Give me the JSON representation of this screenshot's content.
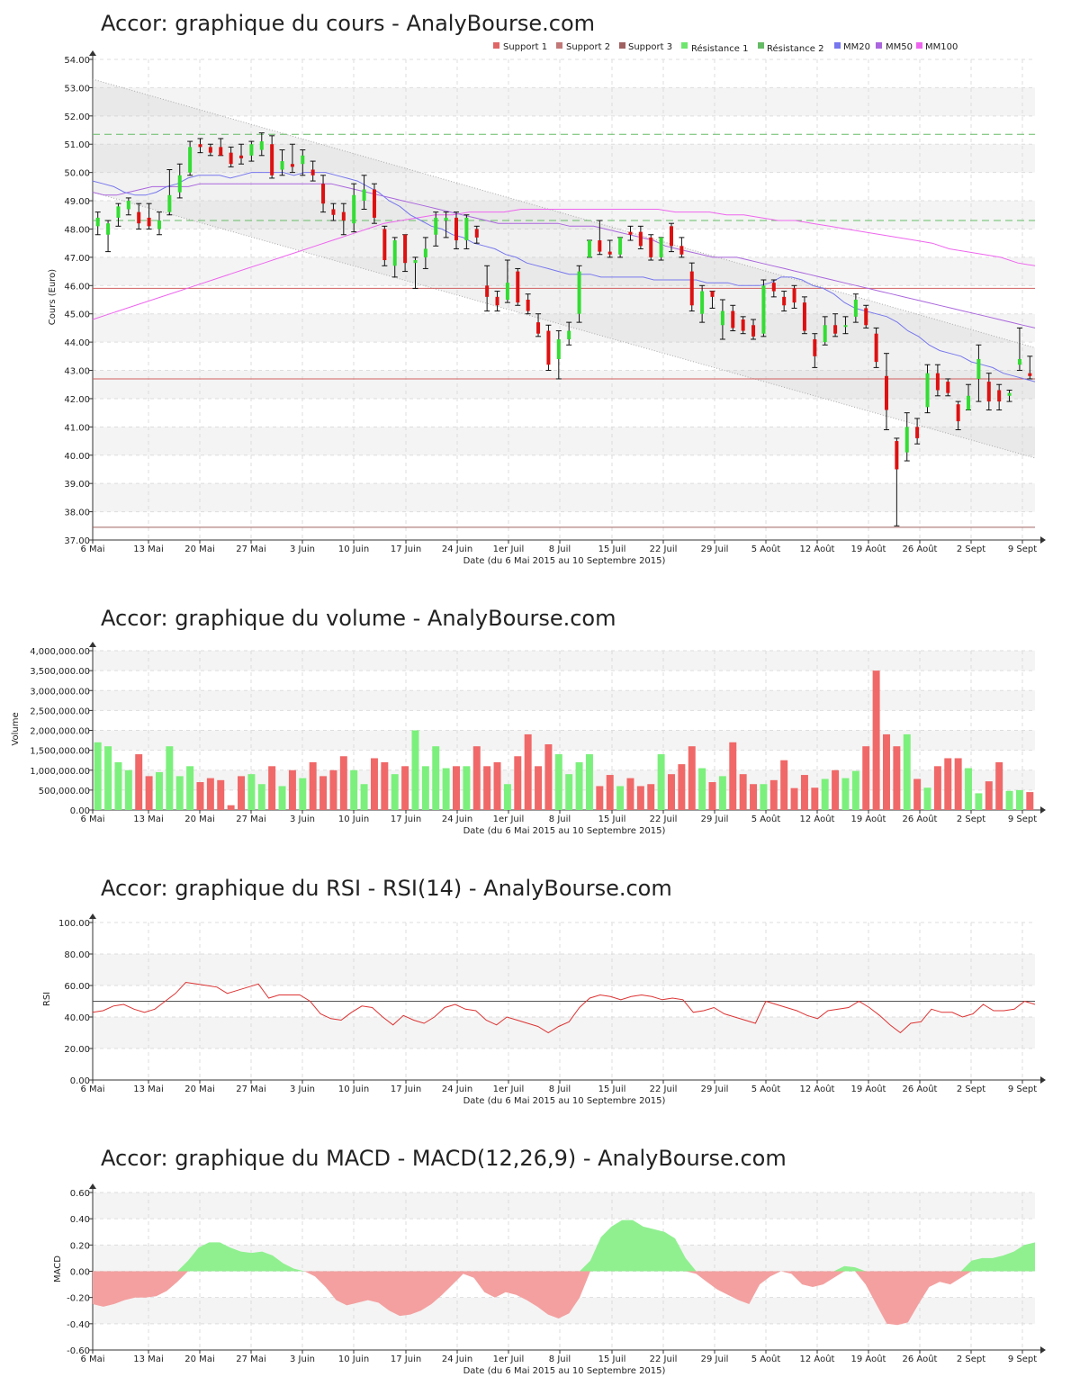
{
  "chart_data": [
    {
      "id": "price",
      "type": "candlestick",
      "title": "Accor: graphique du cours - AnalyBourse.com",
      "ylabel": "Cours (Euro)",
      "xlabel": "Date (du 6 Mai 2015 au 10 Septembre 2015)",
      "ylim": [
        37,
        54
      ],
      "yticks": [
        "37.00",
        "38.00",
        "39.00",
        "40.00",
        "41.00",
        "42.00",
        "43.00",
        "44.00",
        "45.00",
        "46.00",
        "47.00",
        "48.00",
        "49.00",
        "50.00",
        "51.00",
        "52.00",
        "53.00",
        "54.00"
      ],
      "xticks": [
        "6 Mai",
        "13 Mai",
        "20 Mai",
        "27 Mai",
        "3 Juin",
        "10 Juin",
        "17 Juin",
        "24 Juin",
        "1er Juil",
        "8 Juil",
        "15 Juil",
        "22 Juil",
        "29 Juil",
        "5 Août",
        "12 Août",
        "19 Août",
        "26 Août",
        "2 Sept",
        "9 Sept"
      ],
      "legend": {
        "position": "top-right",
        "items": [
          {
            "name": "Support 1",
            "color": "#e06666"
          },
          {
            "name": "Support 2",
            "color": "#c27878"
          },
          {
            "name": "Support 3",
            "color": "#a06060"
          },
          {
            "name": "Résistance 1",
            "color": "#6ee66e"
          },
          {
            "name": "Résistance 2",
            "color": "#66bb66"
          },
          {
            "name": "MM20",
            "color": "#7777ee"
          },
          {
            "name": "MM50",
            "color": "#aa66dd"
          },
          {
            "name": "MM100",
            "color": "#ee66ee"
          }
        ]
      },
      "levels": {
        "support_1": 42.7,
        "support_2": 45.9,
        "support_3": 37.45,
        "resistance_1": 48.3,
        "resistance_2": 51.35
      },
      "channel": {
        "upper": [
          53.3,
          43.8
        ],
        "lower": [
          49.3,
          39.9
        ]
      },
      "candles": [
        {
          "o": 48.1,
          "h": 48.6,
          "l": 47.8,
          "c": 48.4
        },
        {
          "o": 47.8,
          "h": 48.3,
          "l": 47.2,
          "c": 48.2
        },
        {
          "o": 48.4,
          "h": 48.9,
          "l": 48.1,
          "c": 48.8
        },
        {
          "o": 48.7,
          "h": 49.1,
          "l": 48.5,
          "c": 49.0
        },
        {
          "o": 48.6,
          "h": 48.9,
          "l": 48.0,
          "c": 48.2
        },
        {
          "o": 48.4,
          "h": 48.9,
          "l": 48.0,
          "c": 48.1
        },
        {
          "o": 48.0,
          "h": 48.6,
          "l": 47.8,
          "c": 48.3
        },
        {
          "o": 48.6,
          "h": 50.1,
          "l": 48.5,
          "c": 49.2
        },
        {
          "o": 49.3,
          "h": 50.3,
          "l": 49.1,
          "c": 49.9
        },
        {
          "o": 50.0,
          "h": 51.1,
          "l": 49.9,
          "c": 50.9
        },
        {
          "o": 51.0,
          "h": 51.2,
          "l": 50.7,
          "c": 50.9
        },
        {
          "o": 50.9,
          "h": 51.0,
          "l": 50.6,
          "c": 50.7
        },
        {
          "o": 50.9,
          "h": 51.2,
          "l": 50.6,
          "c": 50.6
        },
        {
          "o": 50.7,
          "h": 50.9,
          "l": 50.2,
          "c": 50.3
        },
        {
          "o": 50.6,
          "h": 51.0,
          "l": 50.3,
          "c": 50.5
        },
        {
          "o": 50.6,
          "h": 51.1,
          "l": 50.4,
          "c": 51.0
        },
        {
          "o": 50.8,
          "h": 51.4,
          "l": 50.6,
          "c": 51.1
        },
        {
          "o": 51.0,
          "h": 51.3,
          "l": 49.8,
          "c": 49.9
        },
        {
          "o": 50.1,
          "h": 50.8,
          "l": 49.9,
          "c": 50.4
        },
        {
          "o": 50.3,
          "h": 51.0,
          "l": 50.0,
          "c": 50.2
        },
        {
          "o": 50.3,
          "h": 50.8,
          "l": 49.9,
          "c": 50.6
        },
        {
          "o": 50.1,
          "h": 50.4,
          "l": 49.7,
          "c": 49.9
        },
        {
          "o": 49.6,
          "h": 49.9,
          "l": 48.6,
          "c": 48.9
        },
        {
          "o": 48.7,
          "h": 48.9,
          "l": 48.3,
          "c": 48.5
        },
        {
          "o": 48.6,
          "h": 48.9,
          "l": 47.8,
          "c": 48.3
        },
        {
          "o": 48.2,
          "h": 49.6,
          "l": 47.9,
          "c": 49.2
        },
        {
          "o": 49.0,
          "h": 49.9,
          "l": 48.7,
          "c": 49.4
        },
        {
          "o": 49.4,
          "h": 49.6,
          "l": 48.2,
          "c": 48.4
        },
        {
          "o": 48.0,
          "h": 48.1,
          "l": 46.7,
          "c": 46.9
        },
        {
          "o": 46.7,
          "h": 47.7,
          "l": 46.3,
          "c": 47.6
        },
        {
          "o": 47.8,
          "h": 47.8,
          "l": 46.5,
          "c": 46.8
        },
        {
          "o": 46.8,
          "h": 47.0,
          "l": 45.9,
          "c": 46.9
        },
        {
          "o": 47.0,
          "h": 47.7,
          "l": 46.6,
          "c": 47.3
        },
        {
          "o": 47.8,
          "h": 48.6,
          "l": 47.4,
          "c": 48.4
        },
        {
          "o": 48.3,
          "h": 48.6,
          "l": 47.7,
          "c": 48.4
        },
        {
          "o": 48.4,
          "h": 48.6,
          "l": 47.3,
          "c": 47.6
        },
        {
          "o": 47.6,
          "h": 48.5,
          "l": 47.3,
          "c": 48.4
        },
        {
          "o": 48.0,
          "h": 48.1,
          "l": 47.5,
          "c": 47.7
        },
        {
          "o": 46.0,
          "h": 46.7,
          "l": 45.1,
          "c": 45.6
        },
        {
          "o": 45.6,
          "h": 45.8,
          "l": 45.1,
          "c": 45.3
        },
        {
          "o": 45.5,
          "h": 46.9,
          "l": 45.4,
          "c": 46.1
        },
        {
          "o": 46.5,
          "h": 46.6,
          "l": 45.3,
          "c": 45.4
        },
        {
          "o": 45.5,
          "h": 45.7,
          "l": 45.0,
          "c": 45.1
        },
        {
          "o": 44.7,
          "h": 45.0,
          "l": 44.2,
          "c": 44.3
        },
        {
          "o": 44.4,
          "h": 44.6,
          "l": 43.0,
          "c": 43.2
        },
        {
          "o": 43.4,
          "h": 44.4,
          "l": 42.7,
          "c": 44.1
        },
        {
          "o": 44.1,
          "h": 44.7,
          "l": 43.9,
          "c": 44.4
        },
        {
          "o": 45.0,
          "h": 46.7,
          "l": 44.7,
          "c": 46.5
        },
        {
          "o": 47.0,
          "h": 47.6,
          "l": 47.0,
          "c": 47.6
        },
        {
          "o": 47.6,
          "h": 48.3,
          "l": 47.1,
          "c": 47.2
        },
        {
          "o": 47.2,
          "h": 47.6,
          "l": 47.0,
          "c": 47.1
        },
        {
          "o": 47.1,
          "h": 47.7,
          "l": 47.0,
          "c": 47.7
        },
        {
          "o": 47.9,
          "h": 48.1,
          "l": 47.6,
          "c": 47.8
        },
        {
          "o": 47.9,
          "h": 48.1,
          "l": 47.3,
          "c": 47.4
        },
        {
          "o": 47.7,
          "h": 47.8,
          "l": 46.9,
          "c": 47.0
        },
        {
          "o": 47.0,
          "h": 47.7,
          "l": 46.9,
          "c": 47.7
        },
        {
          "o": 48.1,
          "h": 48.2,
          "l": 47.2,
          "c": 47.4
        },
        {
          "o": 47.4,
          "h": 47.7,
          "l": 47.0,
          "c": 47.1
        },
        {
          "o": 46.5,
          "h": 46.8,
          "l": 45.1,
          "c": 45.3
        },
        {
          "o": 45.0,
          "h": 46.0,
          "l": 44.7,
          "c": 45.8
        },
        {
          "o": 45.8,
          "h": 45.8,
          "l": 45.2,
          "c": 45.6
        },
        {
          "o": 44.6,
          "h": 45.5,
          "l": 44.1,
          "c": 45.1
        },
        {
          "o": 45.1,
          "h": 45.3,
          "l": 44.4,
          "c": 44.5
        },
        {
          "o": 44.8,
          "h": 44.9,
          "l": 44.3,
          "c": 44.4
        },
        {
          "o": 44.6,
          "h": 44.8,
          "l": 44.1,
          "c": 44.2
        },
        {
          "o": 44.3,
          "h": 46.2,
          "l": 44.2,
          "c": 46.0
        },
        {
          "o": 46.1,
          "h": 46.2,
          "l": 45.6,
          "c": 45.8
        },
        {
          "o": 45.6,
          "h": 45.8,
          "l": 45.1,
          "c": 45.3
        },
        {
          "o": 45.9,
          "h": 46.0,
          "l": 45.2,
          "c": 45.4
        },
        {
          "o": 45.4,
          "h": 45.6,
          "l": 44.3,
          "c": 44.4
        },
        {
          "o": 44.1,
          "h": 44.3,
          "l": 43.1,
          "c": 43.5
        },
        {
          "o": 44.0,
          "h": 44.9,
          "l": 43.9,
          "c": 44.6
        },
        {
          "o": 44.6,
          "h": 45.0,
          "l": 44.2,
          "c": 44.3
        },
        {
          "o": 44.6,
          "h": 44.9,
          "l": 44.3,
          "c": 44.6
        },
        {
          "o": 44.9,
          "h": 45.7,
          "l": 44.7,
          "c": 45.5
        },
        {
          "o": 45.2,
          "h": 45.3,
          "l": 44.5,
          "c": 44.6
        },
        {
          "o": 44.3,
          "h": 44.5,
          "l": 43.1,
          "c": 43.3
        },
        {
          "o": 42.8,
          "h": 43.6,
          "l": 40.9,
          "c": 41.6
        },
        {
          "o": 40.5,
          "h": 40.6,
          "l": 37.5,
          "c": 39.5
        },
        {
          "o": 40.1,
          "h": 41.5,
          "l": 39.8,
          "c": 41.0
        },
        {
          "o": 41.0,
          "h": 41.3,
          "l": 40.4,
          "c": 40.6
        },
        {
          "o": 41.7,
          "h": 43.2,
          "l": 41.5,
          "c": 42.9
        },
        {
          "o": 42.9,
          "h": 43.2,
          "l": 42.1,
          "c": 42.3
        },
        {
          "o": 42.6,
          "h": 42.7,
          "l": 42.1,
          "c": 42.2
        },
        {
          "o": 41.8,
          "h": 41.9,
          "l": 40.9,
          "c": 41.2
        },
        {
          "o": 41.6,
          "h": 42.5,
          "l": 41.6,
          "c": 42.1
        },
        {
          "o": 42.7,
          "h": 43.9,
          "l": 41.9,
          "c": 43.4
        },
        {
          "o": 42.6,
          "h": 42.9,
          "l": 41.6,
          "c": 41.9
        },
        {
          "o": 42.3,
          "h": 42.5,
          "l": 41.6,
          "c": 41.9
        },
        {
          "o": 42.1,
          "h": 42.3,
          "l": 41.9,
          "c": 42.2
        },
        {
          "o": 43.2,
          "h": 44.5,
          "l": 43.0,
          "c": 43.4
        },
        {
          "o": 42.9,
          "h": 43.5,
          "l": 42.7,
          "c": 42.8
        }
      ],
      "mm20": [
        49.7,
        49.6,
        49.5,
        49.3,
        49.2,
        49.2,
        49.3,
        49.5,
        49.6,
        49.8,
        49.9,
        49.9,
        49.9,
        49.8,
        49.9,
        50.0,
        50.0,
        50.0,
        50.0,
        49.9,
        50.0,
        50.0,
        50.0,
        49.9,
        49.8,
        49.7,
        49.5,
        49.3,
        49.0,
        48.8,
        48.5,
        48.3,
        48.1,
        48.0,
        47.8,
        47.7,
        47.5,
        47.4,
        47.3,
        47.1,
        47.0,
        46.8,
        46.7,
        46.6,
        46.5,
        46.4,
        46.4,
        46.4,
        46.3,
        46.3,
        46.3,
        46.3,
        46.3,
        46.2,
        46.2,
        46.2,
        46.2,
        46.2,
        46.1,
        46.1,
        46.1,
        46.0,
        46.0,
        46.0,
        46.1,
        46.3,
        46.3,
        46.2,
        46.0,
        45.9,
        45.7,
        45.4,
        45.2,
        45.1,
        45.0,
        44.9,
        44.7,
        44.4,
        44.2,
        43.9,
        43.7,
        43.6,
        43.5,
        43.3,
        43.2,
        43.1,
        42.9,
        42.8,
        42.7,
        42.6
      ],
      "mm50": [
        49.3,
        49.2,
        49.2,
        49.3,
        49.4,
        49.5,
        49.5,
        49.5,
        49.5,
        49.6,
        49.6,
        49.6,
        49.6,
        49.6,
        49.6,
        49.6,
        49.6,
        49.6,
        49.6,
        49.6,
        49.6,
        49.5,
        49.4,
        49.3,
        49.2,
        49.1,
        49.0,
        48.9,
        48.8,
        48.7,
        48.6,
        48.5,
        48.4,
        48.3,
        48.2,
        48.2,
        48.2,
        48.2,
        48.2,
        48.2,
        48.1,
        48.1,
        48.1,
        48.0,
        47.9,
        47.8,
        47.7,
        47.6,
        47.4,
        47.3,
        47.2,
        47.1,
        47.0,
        47.0,
        47.0,
        46.9,
        46.8,
        46.7,
        46.6,
        46.5,
        46.4,
        46.3,
        46.2,
        46.1,
        46.0,
        45.9,
        45.8,
        45.7,
        45.6,
        45.5,
        45.4,
        45.3,
        45.2,
        45.1,
        45.0,
        44.9,
        44.8,
        44.7,
        44.6,
        44.5
      ],
      "mm100": [
        44.8,
        45.0,
        45.2,
        45.4,
        45.6,
        45.8,
        46.0,
        46.2,
        46.4,
        46.6,
        46.8,
        47.0,
        47.2,
        47.4,
        47.6,
        47.8,
        48.0,
        48.2,
        48.3,
        48.4,
        48.5,
        48.5,
        48.6,
        48.6,
        48.6,
        48.7,
        48.7,
        48.7,
        48.7,
        48.7,
        48.7,
        48.7,
        48.7,
        48.7,
        48.6,
        48.6,
        48.6,
        48.5,
        48.5,
        48.4,
        48.3,
        48.3,
        48.2,
        48.1,
        48.0,
        47.9,
        47.8,
        47.7,
        47.6,
        47.5,
        47.3,
        47.2,
        47.1,
        47.0,
        46.8,
        46.7
      ]
    },
    {
      "id": "volume",
      "type": "bar",
      "title": "Accor: graphique du volume - AnalyBourse.com",
      "ylabel": "Volume",
      "xlabel": "Date (du 6 Mai 2015 au 10 Septembre 2015)",
      "ylim": [
        0,
        4000000
      ],
      "yticks": [
        "0.00",
        "500,000.00",
        "1,000,000.00",
        "1,500,000.00",
        "2,000,000.00",
        "2,500,000.00",
        "3,000,000.00",
        "3,500,000.00",
        "4,000,000.00"
      ],
      "xticks": [
        "6 Mai",
        "13 Mai",
        "20 Mai",
        "27 Mai",
        "3 Juin",
        "10 Juin",
        "17 Juin",
        "24 Juin",
        "1er Juil",
        "8 Juil",
        "15 Juil",
        "22 Juil",
        "29 Juil",
        "5 Août",
        "12 Août",
        "19 Août",
        "26 Août",
        "2 Sept",
        "9 Sept"
      ],
      "up_color": "#7cf07c",
      "down_color": "#f06868"
    },
    {
      "id": "rsi",
      "type": "line",
      "title": "Accor: graphique du RSI - RSI(14) - AnalyBourse.com",
      "ylabel": "RSI",
      "xlabel": "Date (du 6 Mai 2015 au 10 Septembre 2015)",
      "ylim": [
        0,
        100
      ],
      "yticks": [
        "0.00",
        "20.00",
        "40.00",
        "60.00",
        "80.00",
        "100.00"
      ],
      "xticks": [
        "6 Mai",
        "13 Mai",
        "20 Mai",
        "27 Mai",
        "3 Juin",
        "10 Juin",
        "17 Juin",
        "24 Juin",
        "1er Juil",
        "8 Juil",
        "15 Juil",
        "22 Juil",
        "29 Juil",
        "5 Août",
        "12 Août",
        "19 Août",
        "26 Août",
        "2 Sept",
        "9 Sept"
      ],
      "reference": 50,
      "values": [
        43,
        44,
        47,
        48,
        45,
        43,
        45,
        50,
        55,
        62,
        61,
        60,
        59,
        55,
        57,
        59,
        61,
        52,
        54,
        54,
        54,
        50,
        42,
        39,
        38,
        43,
        47,
        46,
        40,
        35,
        41,
        38,
        36,
        40,
        46,
        48,
        45,
        44,
        38,
        35,
        40,
        38,
        36,
        34,
        30,
        34,
        37,
        46,
        52,
        54,
        53,
        51,
        53,
        54,
        53,
        51,
        52,
        51,
        43,
        44,
        46,
        42,
        40,
        38,
        36,
        50,
        48,
        46,
        44,
        41,
        39,
        44,
        45,
        46,
        50,
        46,
        41,
        35,
        30,
        36,
        37,
        45,
        43,
        43,
        40,
        42,
        48,
        44,
        44,
        45,
        50,
        48
      ]
    },
    {
      "id": "macd",
      "type": "area",
      "title": "Accor: graphique du MACD - MACD(12,26,9) - AnalyBourse.com",
      "ylabel": "MACD",
      "xlabel": "Date (du 6 Mai 2015 au 10 Septembre 2015)",
      "ylim": [
        -0.6,
        0.6
      ],
      "yticks": [
        "-0.60",
        "-0.40",
        "-0.20",
        "0.00",
        "0.20",
        "0.40",
        "0.60"
      ],
      "xticks": [
        "6 Mai",
        "13 Mai",
        "20 Mai",
        "27 Mai",
        "3 Juin",
        "10 Juin",
        "17 Juin",
        "24 Juin",
        "1er Juil",
        "8 Juil",
        "15 Juil",
        "22 Juil",
        "29 Juil",
        "5 Août",
        "12 Août",
        "19 Août",
        "26 Août",
        "2 Sept",
        "9 Sept"
      ],
      "positive_color": "#90f090",
      "negative_color": "#f4a0a0",
      "values": [
        -0.25,
        -0.27,
        -0.25,
        -0.22,
        -0.2,
        -0.2,
        -0.19,
        -0.15,
        -0.08,
        0.08,
        0.18,
        0.22,
        0.22,
        0.18,
        0.15,
        0.14,
        0.15,
        0.12,
        0.06,
        0.02,
        0.0,
        -0.04,
        -0.12,
        -0.22,
        -0.26,
        -0.24,
        -0.22,
        -0.24,
        -0.3,
        -0.34,
        -0.33,
        -0.3,
        -0.25,
        -0.18,
        -0.1,
        -0.02,
        -0.05,
        -0.16,
        -0.2,
        -0.16,
        -0.18,
        -0.22,
        -0.27,
        -0.33,
        -0.36,
        -0.32,
        -0.2,
        0.08,
        0.26,
        0.34,
        0.39,
        0.39,
        0.34,
        0.32,
        0.3,
        0.25,
        0.1,
        -0.02,
        -0.08,
        -0.14,
        -0.18,
        -0.22,
        -0.25,
        -0.1,
        -0.04,
        0.0,
        -0.02,
        -0.1,
        -0.12,
        -0.1,
        -0.05,
        0.04,
        0.03,
        -0.1,
        -0.25,
        -0.4,
        -0.41,
        -0.39,
        -0.25,
        -0.12,
        -0.08,
        -0.1,
        -0.05,
        0.08,
        0.1,
        0.1,
        0.12,
        0.15,
        0.2,
        0.22
      ]
    }
  ]
}
